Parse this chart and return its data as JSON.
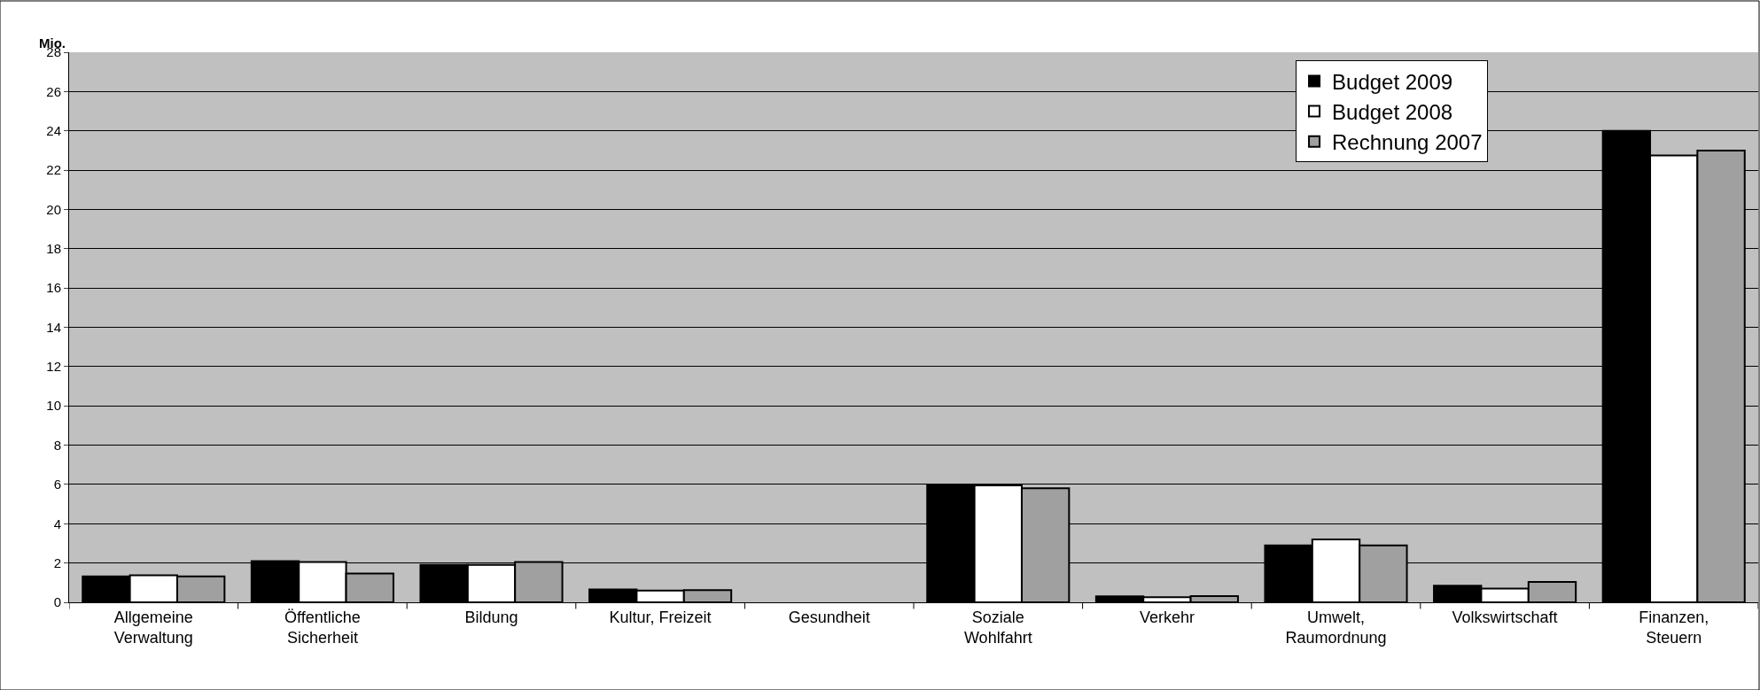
{
  "chart_data": {
    "type": "bar",
    "ylabel": "Mio.",
    "categories": [
      "Allgemeine\nVerwaltung",
      "Öffentliche\nSicherheit",
      "Bildung",
      "Kultur, Freizeit",
      "Gesundheit",
      "Soziale\nWohlfahrt",
      "Verkehr",
      "Umwelt,\nRaumordnung",
      "Volkswirtschaft",
      "Finanzen,\nSteuern"
    ],
    "series": [
      {
        "name": "Budget 2009",
        "color": "#000000",
        "values": [
          1.32,
          2.1,
          1.9,
          0.65,
          0,
          6.0,
          0.3,
          2.9,
          0.84,
          24.0
        ]
      },
      {
        "name": "Budget 2008",
        "color": "#ffffff",
        "values": [
          1.38,
          2.05,
          1.9,
          0.6,
          0,
          5.95,
          0.26,
          3.2,
          0.7,
          22.75
        ]
      },
      {
        "name": "Rechnung 2007",
        "color": "#a0a0a0",
        "values": [
          1.32,
          1.47,
          2.05,
          0.62,
          0,
          5.8,
          0.32,
          2.9,
          1.04,
          23.0
        ]
      }
    ],
    "ylim": [
      0,
      28
    ],
    "yticks": [
      0,
      2,
      4,
      6,
      8,
      10,
      12,
      14,
      16,
      18,
      20,
      22,
      24,
      26,
      28
    ],
    "grid": "y",
    "legend": "top right"
  }
}
